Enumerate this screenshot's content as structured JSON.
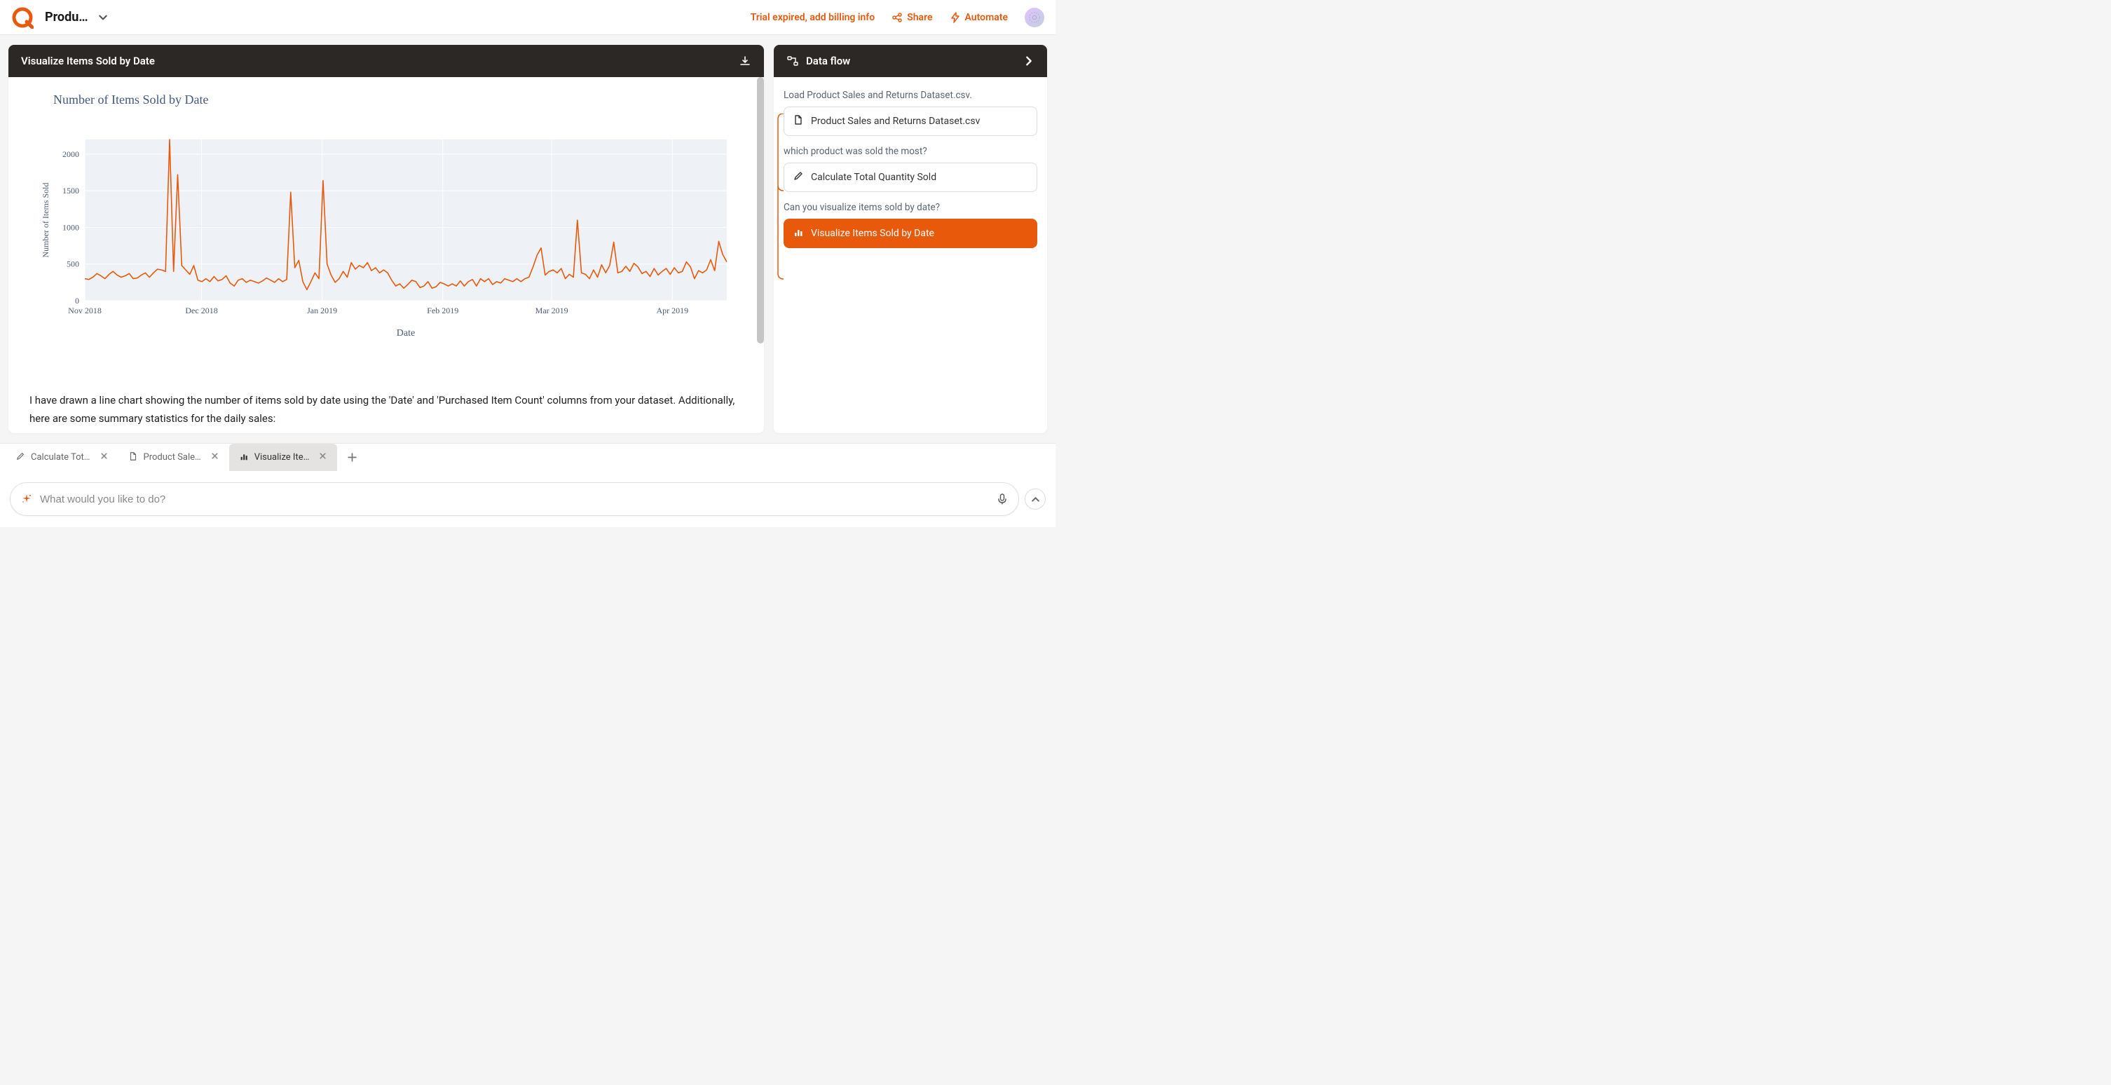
{
  "header": {
    "project_title": "Produ…",
    "trial_text": "Trial expired, add billing info",
    "share_label": "Share",
    "automate_label": "Automate"
  },
  "viz_panel": {
    "header_title": "Visualize Items Sold by Date",
    "chart_title": "Number of Items Sold by Date",
    "description": "I have drawn a line chart showing the number of items sold by date using the 'Date' and 'Purchased Item Count' columns from your dataset. Additionally, here are some summary statistics for the daily sales:"
  },
  "chart": {
    "type": "line",
    "xlabel": "Date",
    "ylabel": "Number of Items Sold",
    "ylabel_fontsize": 12,
    "xlabel_fontsize": 14,
    "title_fontsize": 18,
    "line_color": "#e8590c",
    "line_width": 1.6,
    "background_color": "#eef1f6",
    "grid_color": "#ffffff",
    "axis_text_color": "#4a5a72",
    "ylim": [
      0,
      2200
    ],
    "ytick_step": 500,
    "yticks": [
      0,
      500,
      1000,
      1500,
      2000
    ],
    "x_tick_labels": [
      "Nov 2018",
      "Dec 2018",
      "Jan 2019",
      "Feb 2019",
      "Mar 2019",
      "Apr 2019"
    ],
    "x_tick_positions": [
      0,
      30,
      61,
      92,
      120,
      151
    ],
    "x_domain": [
      0,
      165
    ],
    "values": [
      300,
      290,
      320,
      370,
      340,
      300,
      360,
      400,
      350,
      320,
      340,
      370,
      300,
      310,
      350,
      380,
      320,
      380,
      430,
      420,
      400,
      2200,
      400,
      1720,
      480,
      420,
      360,
      480,
      280,
      260,
      300,
      260,
      330,
      270,
      290,
      340,
      240,
      200,
      280,
      300,
      250,
      280,
      260,
      240,
      270,
      310,
      280,
      250,
      300,
      260,
      290,
      1480,
      450,
      550,
      260,
      150,
      260,
      380,
      300,
      1640,
      500,
      350,
      250,
      300,
      400,
      320,
      520,
      430,
      480,
      450,
      520,
      410,
      450,
      380,
      420,
      380,
      280,
      200,
      230,
      170,
      220,
      280,
      260,
      180,
      200,
      260,
      170,
      190,
      250,
      230,
      200,
      230,
      200,
      270,
      200,
      260,
      290,
      200,
      300,
      260,
      300,
      220,
      260,
      240,
      300,
      280,
      260,
      300,
      260,
      300,
      320,
      460,
      620,
      720,
      350,
      400,
      420,
      380,
      440,
      300,
      360,
      320,
      1100,
      380,
      360,
      300,
      420,
      320,
      490,
      380,
      480,
      800,
      380,
      400,
      470,
      400,
      510,
      460,
      370,
      400,
      330,
      440,
      350,
      400,
      440,
      360,
      450,
      380,
      400,
      530,
      460,
      300,
      410,
      380,
      420,
      560,
      410,
      810,
      630,
      530
    ]
  },
  "flow": {
    "header_title": "Data flow",
    "items": [
      {
        "prompt": "Load Product Sales and Returns Dataset.csv.",
        "card_label": "Product Sales and Returns Dataset.csv",
        "icon": "file",
        "active": false
      },
      {
        "prompt": "which product was sold the most?",
        "card_label": "Calculate Total Quantity Sold",
        "icon": "pencil",
        "active": false
      },
      {
        "prompt": "Can you visualize items sold by date?",
        "card_label": "Visualize Items Sold by Date",
        "icon": "bar-chart",
        "active": true
      }
    ]
  },
  "tabs": {
    "items": [
      {
        "label": "Calculate Tot…",
        "icon": "pencil",
        "active": false
      },
      {
        "label": "Product Sale…",
        "icon": "file",
        "active": false
      },
      {
        "label": "Visualize Ite…",
        "icon": "bar-chart",
        "active": true
      }
    ]
  },
  "prompt": {
    "placeholder": "What would you like to do?"
  },
  "colors": {
    "accent": "#e8590c",
    "dark_header": "#2c2826"
  }
}
